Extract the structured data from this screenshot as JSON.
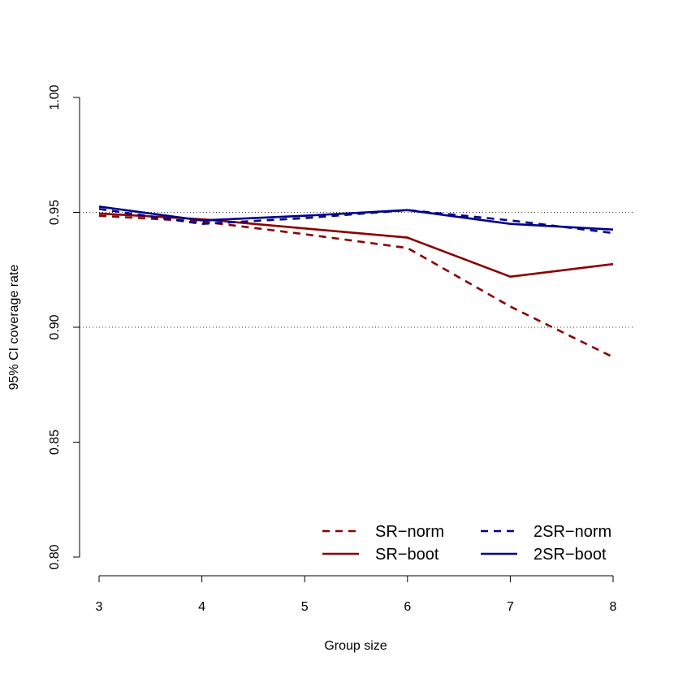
{
  "chart_data": {
    "type": "line",
    "title": "",
    "xlabel": "Group size",
    "ylabel": "95% CI coverage rate",
    "x": [
      3,
      4,
      5,
      6,
      7,
      8
    ],
    "xticks": [
      "3",
      "4",
      "5",
      "6",
      "7",
      "8"
    ],
    "yticks": [
      "0.80",
      "0.85",
      "0.90",
      "0.95",
      "1.00"
    ],
    "ylim": [
      0.8,
      1.0
    ],
    "reference_lines": [
      0.9,
      0.95
    ],
    "grid": false,
    "legend_position": "bottom-right",
    "series": [
      {
        "name": "SR−norm",
        "color": "#8B0000",
        "dash": "dashed",
        "values": [
          0.9485,
          0.946,
          0.9405,
          0.9345,
          0.909,
          0.887
        ]
      },
      {
        "name": "SR−boot",
        "color": "#8B0000",
        "dash": "solid",
        "values": [
          0.9495,
          0.947,
          0.943,
          0.939,
          0.922,
          0.9275
        ]
      },
      {
        "name": "2SR−norm",
        "color": "#00008B",
        "dash": "dashed",
        "values": [
          0.9515,
          0.945,
          0.9475,
          0.951,
          0.9465,
          0.941
        ]
      },
      {
        "name": "2SR−boot",
        "color": "#00008B",
        "dash": "solid",
        "values": [
          0.9525,
          0.9465,
          0.9485,
          0.951,
          0.945,
          0.9425
        ]
      }
    ]
  }
}
